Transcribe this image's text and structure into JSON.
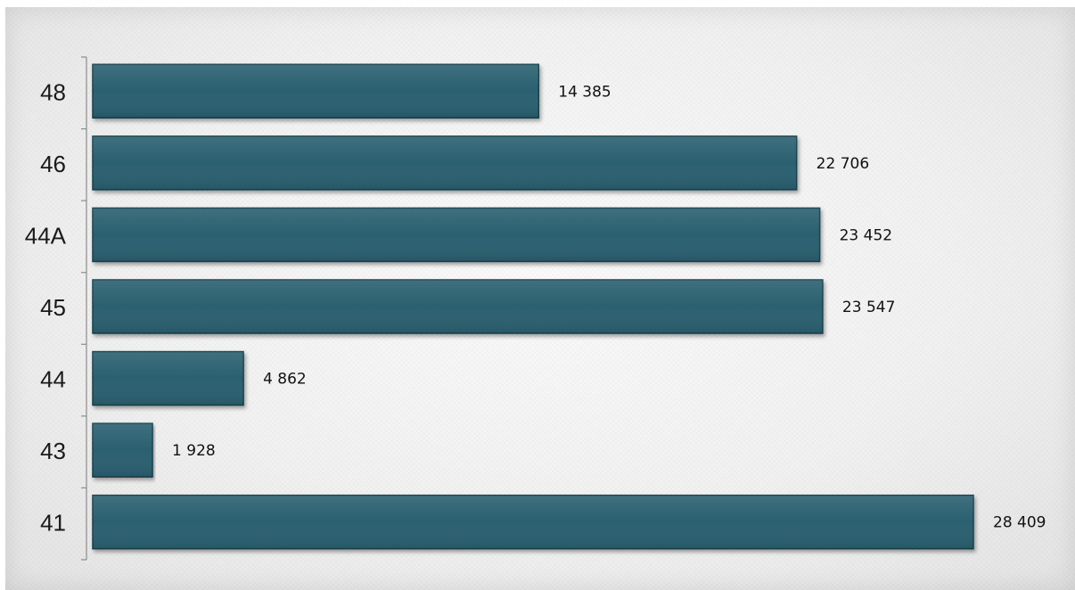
{
  "chart_data": {
    "type": "bar",
    "orientation": "horizontal",
    "title": "",
    "xlabel": "",
    "ylabel": "",
    "categories": [
      "48",
      "46",
      "44A",
      "45",
      "44",
      "43",
      "41"
    ],
    "values": [
      14385,
      22706,
      23452,
      23547,
      4862,
      1928,
      28409
    ],
    "value_labels": [
      "14 385",
      "22 706",
      "23 452",
      "23 547",
      "4 862",
      "1 928",
      "28 409"
    ],
    "xlim": [
      0,
      28409
    ],
    "grid": false,
    "legend": "none",
    "colors": {
      "bar": "#2a6170",
      "bar_border": "#17414c",
      "axis": "#8c8c8c",
      "text": "#111111"
    }
  }
}
